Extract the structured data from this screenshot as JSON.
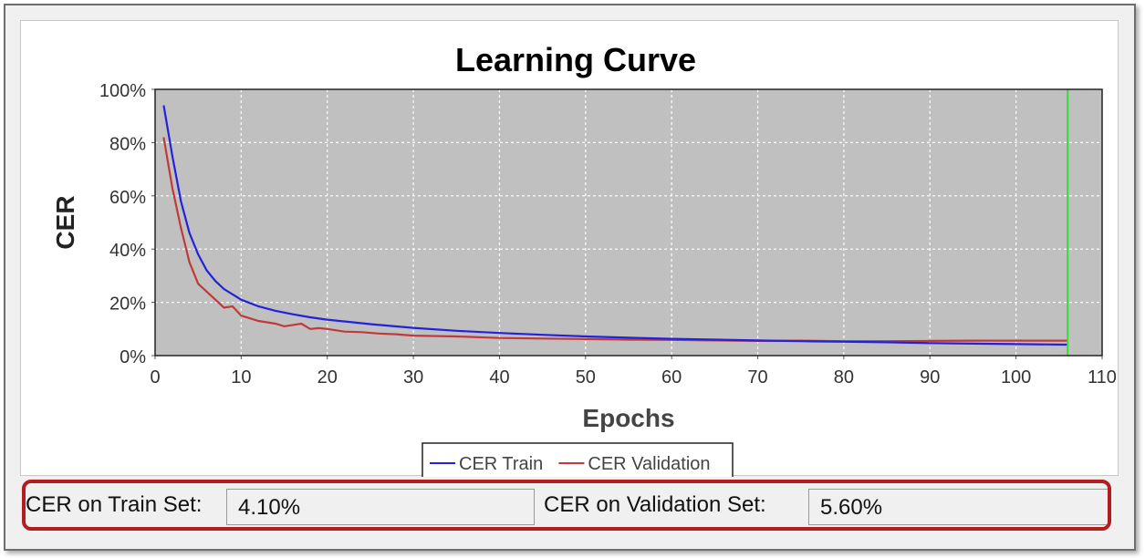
{
  "chart_data": {
    "type": "line",
    "title": "Learning Curve",
    "xlabel": "Epochs",
    "ylabel": "CER",
    "xlim": [
      0,
      110
    ],
    "ylim": [
      0,
      100
    ],
    "x_ticks": [
      0,
      10,
      20,
      30,
      40,
      50,
      60,
      70,
      80,
      90,
      100,
      110
    ],
    "y_ticks": [
      0,
      20,
      40,
      60,
      80,
      100
    ],
    "y_tick_labels": [
      "0%",
      "20%",
      "40%",
      "60%",
      "80%",
      "100%"
    ],
    "grid": true,
    "legend": "bottom-center",
    "marker_line_x": 106,
    "series": [
      {
        "name": "CER Train",
        "color": "#2222dd",
        "x": [
          1,
          2,
          3,
          4,
          5,
          6,
          7,
          8,
          9,
          10,
          12,
          14,
          16,
          18,
          20,
          25,
          30,
          35,
          40,
          45,
          50,
          55,
          60,
          65,
          70,
          75,
          80,
          85,
          90,
          95,
          100,
          106
        ],
        "values": [
          94,
          75,
          58,
          46,
          38,
          32,
          28,
          25,
          23,
          21,
          18.5,
          16.8,
          15.5,
          14.4,
          13.5,
          11.8,
          10.4,
          9.3,
          8.5,
          7.8,
          7.2,
          6.7,
          6.3,
          6.0,
          5.7,
          5.4,
          5.2,
          5.0,
          4.7,
          4.5,
          4.3,
          4.1
        ]
      },
      {
        "name": "CER Validation",
        "color": "#c03a3a",
        "x": [
          1,
          2,
          3,
          4,
          5,
          6,
          7,
          8,
          9,
          10,
          11,
          12,
          13,
          14,
          15,
          16,
          17,
          18,
          19,
          20,
          22,
          24,
          26,
          28,
          30,
          35,
          40,
          45,
          50,
          55,
          60,
          65,
          70,
          75,
          80,
          85,
          90,
          95,
          100,
          106
        ],
        "values": [
          82,
          63,
          48,
          35,
          27,
          24,
          21,
          18,
          18.5,
          15,
          14,
          13,
          12.5,
          12,
          11,
          11.5,
          12,
          10,
          10.3,
          10,
          9,
          8.8,
          8.3,
          8,
          7.5,
          7.2,
          6.6,
          6.4,
          6.2,
          6.0,
          5.9,
          5.7,
          5.5,
          5.6,
          5.4,
          5.4,
          5.5,
          5.6,
          5.6,
          5.6
        ]
      }
    ]
  },
  "status": {
    "train_label": "CER on Train Set:",
    "train_value": "4.10%",
    "validation_label": "CER on Validation Set:",
    "validation_value": "5.60%"
  }
}
